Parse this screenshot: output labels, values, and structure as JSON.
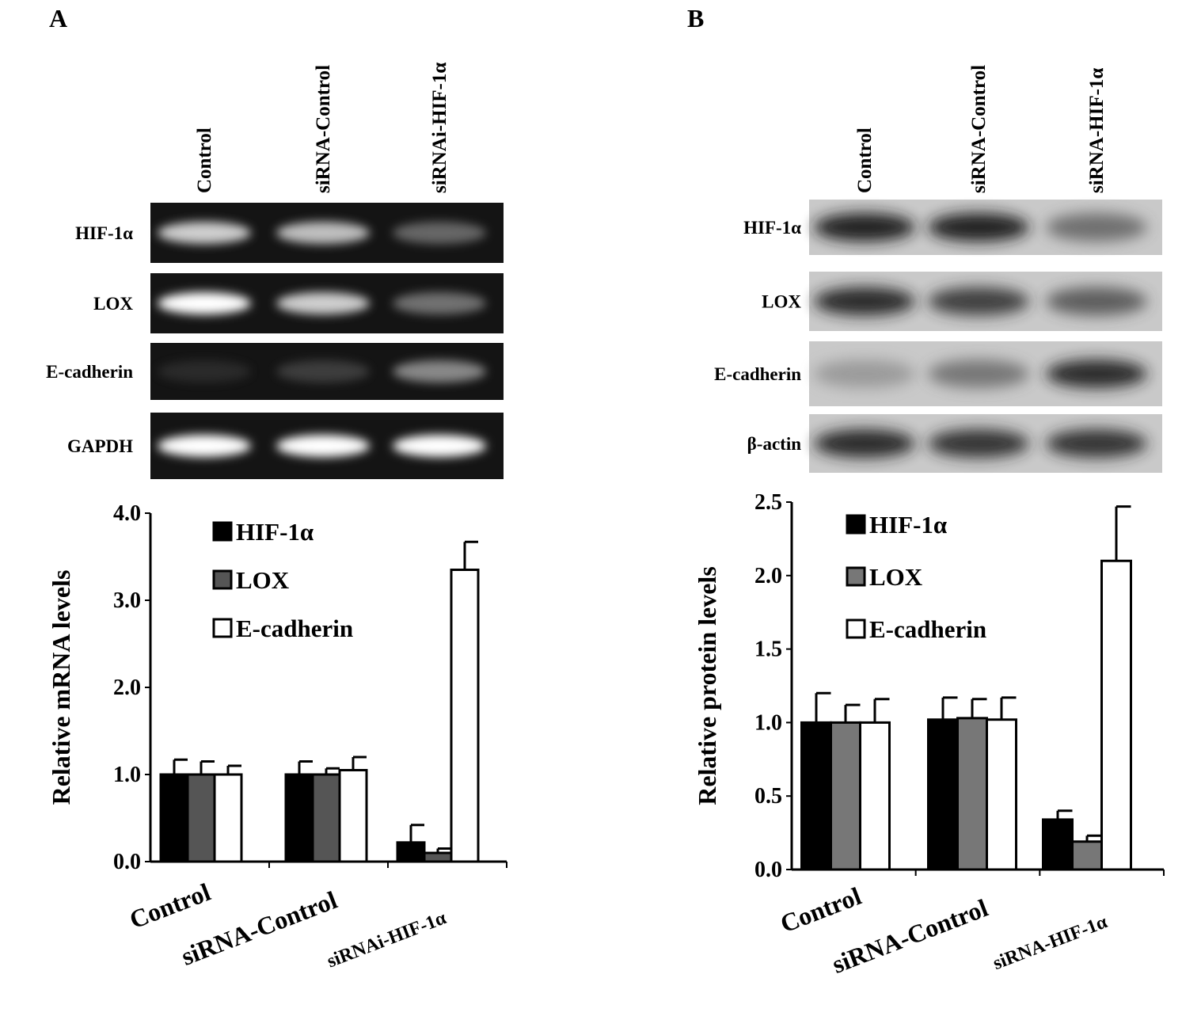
{
  "panels": [
    {
      "letter": "A",
      "lane_labels": [
        "Control",
        "siRNA-Control",
        "siRNAi-HIF-1α"
      ],
      "gel_style": "dark",
      "blot_rows": [
        {
          "label": "HIF-1α",
          "bands": [
            0.85,
            0.8,
            0.45
          ]
        },
        {
          "label": "LOX",
          "bands": [
            1.0,
            0.85,
            0.5
          ]
        },
        {
          "label": "E-cadherin",
          "bands": [
            0.08,
            0.22,
            0.6
          ]
        },
        {
          "label": "GAPDH",
          "bands": [
            1.0,
            1.0,
            1.0
          ]
        }
      ]
    },
    {
      "letter": "B",
      "lane_labels": [
        "Control",
        "siRNA-Control",
        "siRNA-HIF-1α"
      ],
      "gel_style": "light",
      "blot_rows": [
        {
          "label": "HIF-1α",
          "bands": [
            0.95,
            0.95,
            0.55
          ]
        },
        {
          "label": "LOX",
          "bands": [
            0.9,
            0.8,
            0.65
          ]
        },
        {
          "label": "E-cadherin",
          "bands": [
            0.25,
            0.5,
            0.9
          ]
        },
        {
          "label": "β-actin",
          "bands": [
            0.9,
            0.85,
            0.85
          ]
        }
      ]
    }
  ],
  "chart_data": [
    {
      "type": "bar",
      "ylabel": "Relative mRNA levels",
      "ylim": [
        0,
        4.0
      ],
      "yticks": [
        "0.0",
        "1.0",
        "2.0",
        "3.0",
        "4.0"
      ],
      "categories": [
        "Control",
        "siRNA-Control",
        "siRNAi-HIF-1α"
      ],
      "legend_position": "top-left",
      "series": [
        {
          "name": "HIF-1α",
          "color": "#000000",
          "values": [
            1.0,
            1.0,
            0.22
          ],
          "errors": [
            0.17,
            0.15,
            0.2
          ]
        },
        {
          "name": "LOX",
          "color": "#555555",
          "values": [
            1.0,
            1.0,
            0.1
          ],
          "errors": [
            0.15,
            0.07,
            0.05
          ]
        },
        {
          "name": "E-cadherin",
          "color": "#ffffff",
          "values": [
            1.0,
            1.05,
            3.35
          ],
          "errors": [
            0.1,
            0.15,
            0.32
          ]
        }
      ]
    },
    {
      "type": "bar",
      "ylabel": "Relative protein levels",
      "ylim": [
        0,
        2.5
      ],
      "yticks": [
        "0.0",
        "0.5",
        "1.0",
        "1.5",
        "2.0",
        "2.5"
      ],
      "categories": [
        "Control",
        "siRNA-Control",
        "siRNA-HIF-1α"
      ],
      "legend_position": "top-left",
      "series": [
        {
          "name": "HIF-1α",
          "color": "#000000",
          "values": [
            1.0,
            1.02,
            0.34
          ],
          "errors": [
            0.2,
            0.15,
            0.06
          ]
        },
        {
          "name": "LOX",
          "color": "#777777",
          "values": [
            1.0,
            1.03,
            0.19
          ],
          "errors": [
            0.12,
            0.13,
            0.04
          ]
        },
        {
          "name": "E-cadherin",
          "color": "#ffffff",
          "values": [
            1.0,
            1.02,
            2.1
          ],
          "errors": [
            0.16,
            0.15,
            0.37
          ]
        }
      ]
    }
  ]
}
